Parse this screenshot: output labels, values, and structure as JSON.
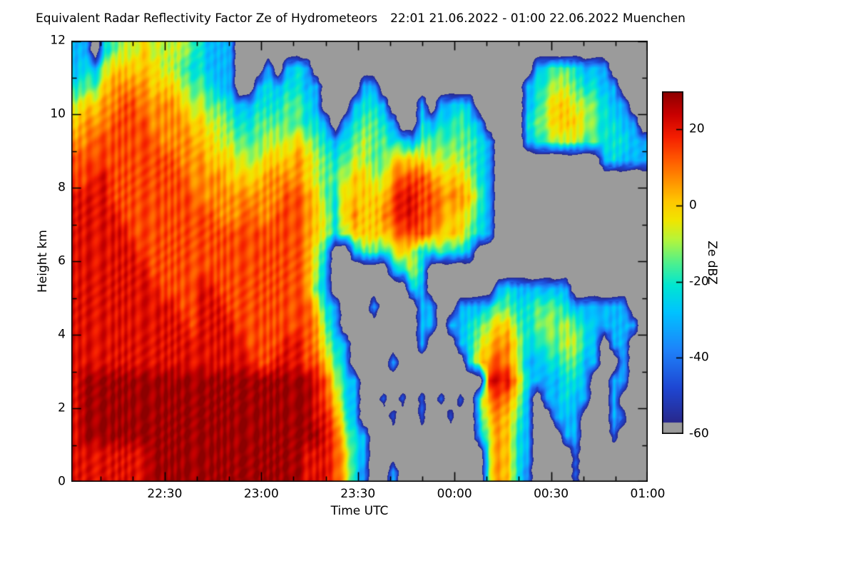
{
  "title": "Equivalent Radar Reflectivity Factor Ze of Hydrometeors",
  "period": "22:01 21.06.2022 - 01:00 22.06.2022 Muenchen",
  "chart_data": {
    "type": "heatmap",
    "title": "Equivalent Radar Reflectivity Factor Ze of Hydrometeors",
    "period": "22:01 21.06.2022 - 01:00 22.06.2022 Muenchen",
    "station": "Muenchen",
    "units": "dBZ",
    "x_axis": {
      "label": "Time UTC",
      "start": "22:01",
      "end": "01:00",
      "total_min": 179,
      "minor_start_min": 9,
      "minor_step_min": 10,
      "ticks": [
        {
          "label": "22:30",
          "t_min": 29
        },
        {
          "label": "23:00",
          "t_min": 59
        },
        {
          "label": "23:30",
          "t_min": 89
        },
        {
          "label": "00:00",
          "t_min": 119
        },
        {
          "label": "00:30",
          "t_min": 149
        },
        {
          "label": "01:00",
          "t_min": 179
        }
      ]
    },
    "y_axis": {
      "label": "Height km",
      "min": 0,
      "max": 12,
      "minor_step": 1,
      "ticks": [
        0,
        2,
        4,
        6,
        8,
        10,
        12
      ]
    },
    "colorbar": {
      "label": "Ze dBZ",
      "min": -60,
      "max": 30,
      "ticks": [
        20,
        0,
        -20,
        -40,
        -60
      ],
      "nodata_color": "#9b9b9b",
      "nodata_below": -57
    },
    "color_stops": [
      [
        -57,
        "#28288c"
      ],
      [
        -48,
        "#1e46d2"
      ],
      [
        -38,
        "#1e82fa"
      ],
      [
        -28,
        "#00c3ff"
      ],
      [
        -21,
        "#00e6d2"
      ],
      [
        -15,
        "#50f08c"
      ],
      [
        -9,
        "#b4f53c"
      ],
      [
        -4,
        "#f0e600"
      ],
      [
        1,
        "#ffc800"
      ],
      [
        6,
        "#ff9600"
      ],
      [
        12,
        "#ff5a00"
      ],
      [
        18,
        "#f51e00"
      ],
      [
        24,
        "#c80000"
      ],
      [
        30,
        "#8c0000"
      ]
    ],
    "grid": {
      "note": "Reflectivity dBZ on a 3-min x 0.5-km grid, rows listed top (12 km) to bottom (0 km). Each row is a list of segments: strings are value characters, numbers are runs of '.' (no echo / below detection). Rows are padded with '.' to 60 columns.",
      "t0": "22:01",
      "dt_min": 3,
      "dz_km": 0.5,
      "n_cols": 60,
      "n_rows": 24,
      "char_values": {
        ".": null,
        "0": -60,
        "1": -52,
        "2": -45,
        "3": -38,
        "4": -30,
        "5": -22,
        "6": -15,
        "7": -8,
        "8": 0,
        "9": 7,
        "A": 14,
        "B": 21,
        "C": 28
      },
      "rows": [
        [
          "44.56778777765444"
        ],
        [
          "45478888877655444",
          3,
          "4.454",
          23,
          "45665444"
        ],
        [
          "56689999888766544",
          2,
          "4545544",
          4,
          "44",
          15,
          "4567765544"
        ],
        [
          "78899AA9999877665445556654",
          3,
          "4554",
          3,
          "4.4454",
          5,
          "45788776544"
        ],
        [
          "8999AAAA9999887765566666554.456654",
          2,
          "5455654",
          4,
          "567888765544"
        ],
        [
          "99AAAAAAA99998877666777876545676655466666654",
          3,
          "4567776655544"
        ],
        [
          "AAAAAAAAAAA999888777888987656776688887777654",
          11,
          "45444"
        ],
        [
          "AABBAAAAAAAA9999888899998766788779AAA9888754"
        ],
        [
          "BBBBAAAAAAAAA999999999AA986588888ABBAA999864"
        ],
        [
          "BBBBBAAAAAAAAAA999A99AAA987589889ABBAA988754"
        ],
        [
          "BBBBBBAAAAAAAAAAAAAAAAAA9875788889AAA9888654"
        ],
        [
          "BBBBBBBAAAAAAAAAAAAAAAAA975",
          2,
          "4665787556554"
        ],
        [
          "BBBBBBBBAAAAAAAAAAAAAAAA974",
          6,
          "4575"
        ],
        [
          "BBBBBBBBBAAAABBAAAAAAAAA964",
          8,
          "54",
          7,
          "45444444"
        ],
        [
          "BBBBBBBBBBBAABBBAAAAAAAAA854",
          3,
          "4",
          4,
          "44",
          2,
          "444566556665444444"
        ],
        [
          "BBBBBBBBBBBBABBBBAAAAAAAA964",
          8,
          "44.44567886567676544444"
        ],
        [
          "BBBBBBBBBBBBBBBBBBAAAABBA9754",
          7,
          "4",
          3,
          "457899755667754.44"
        ],
        [
          "BBBBBBBBBBBBBBBBBBBAABBBAA864",
          4,
          "4",
          7,
          "589A9744556644..4"
        ],
        [
          "BCCCCCCCCCCCCCCCCCCCCCCCCBA754",
          13,
          "BBB85444554..44"
        ],
        [
          "BCCCCCCCCCCCCCCCCCCCCCCCCBA854..2.2.2.2.2.69A974.44544..4"
        ],
        [
          "BCCCCCCCCCCCCCCCCCCCCCCCCBB964",
          3,
          "2",
          2,
          "2",
          2,
          "2",
          2,
          "589864",
          2,
          "444",
          3,
          "42"
        ],
        [
          "BCCCCCCCCCCCCCCCCCCCCCCCCCBA754",
          11,
          "479854",
          3,
          "44",
          3,
          "2"
        ],
        [
          "BBBBBBBBCCCCCCCCCCCCCCCCBBBA854",
          12,
          "79854",
          4,
          "2"
        ],
        [
          "BBBBBBBBCCCCCCCCCCCCCCCCBBBA853..4",
          9,
          "79853",
          4,
          "2"
        ]
      ]
    }
  }
}
